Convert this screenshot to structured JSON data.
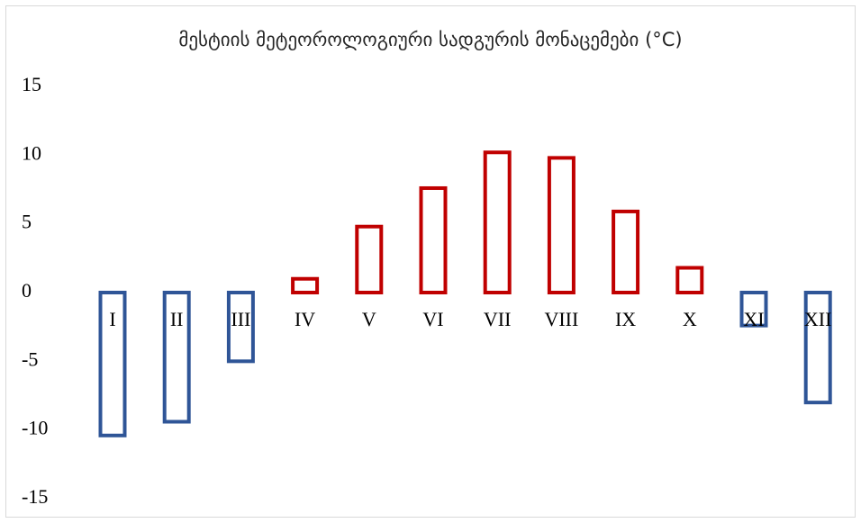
{
  "chart_data": {
    "type": "bar",
    "title": "მესტიის მეტეოროლოგიური სადგურის მონაცემები (°C)",
    "categories": [
      "I",
      "II",
      "III",
      "IV",
      "V",
      "VI",
      "VII",
      "VIII",
      "IX",
      "X",
      "XI",
      "XII"
    ],
    "values": [
      -10.4,
      -9.4,
      -5.0,
      1.0,
      4.8,
      7.6,
      10.2,
      9.8,
      5.9,
      1.8,
      -2.4,
      -8.0
    ],
    "ylim": [
      -15,
      15
    ],
    "yticks": [
      "15",
      "10",
      "5",
      "0",
      "-5",
      "-10",
      "-15"
    ],
    "ytick_values": [
      15,
      10,
      5,
      0,
      -5,
      -10,
      -15
    ],
    "xlabel": "",
    "ylabel": "",
    "grid": false,
    "colors": {
      "positive": "#c00000",
      "negative": "#2f5597",
      "border": "#d9d9d9"
    }
  }
}
